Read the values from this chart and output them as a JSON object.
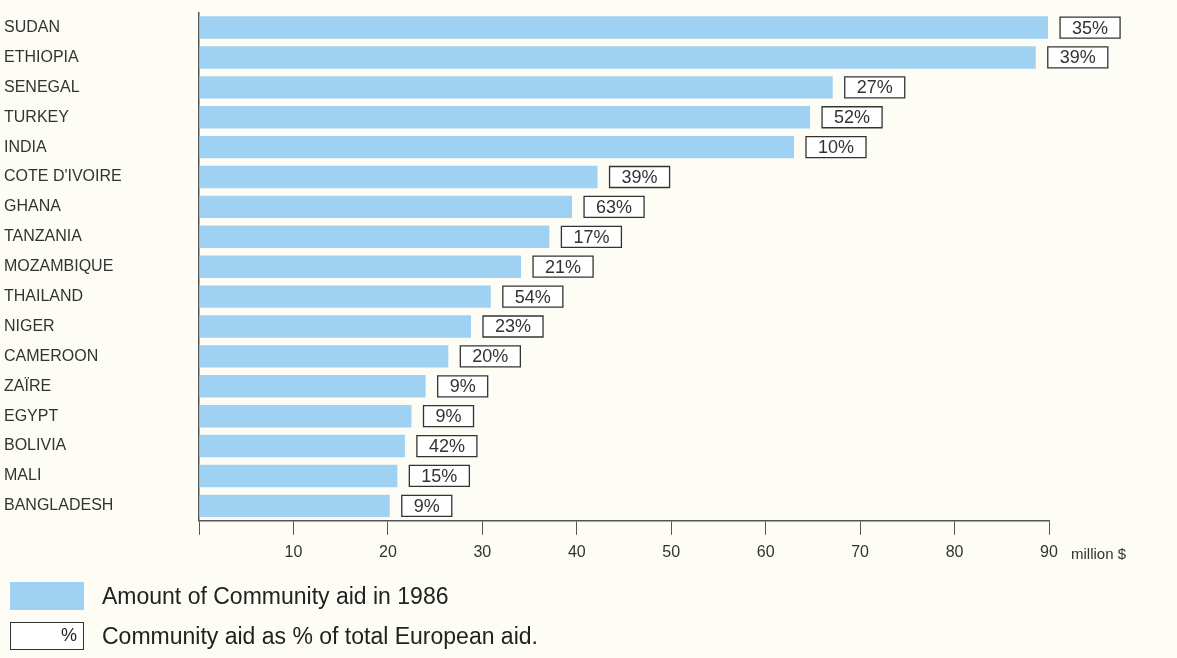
{
  "chart_data": {
    "type": "bar",
    "orientation": "horizontal",
    "categories": [
      "SUDAN",
      "ETHIOPIA",
      "SENEGAL",
      "TURKEY",
      "INDIA",
      "COTE D'IVOIRE",
      "GHANA",
      "TANZANIA",
      "MOZAMBIQUE",
      "THAILAND",
      "NIGER",
      "CAMEROON",
      "ZAÏRE",
      "EGYPT",
      "BOLIVIA",
      "MALI",
      "BANGLADESH"
    ],
    "series": [
      {
        "name": "Amount of Community aid in 1986",
        "color": "#9fd2f2",
        "values": [
          89.9,
          88.6,
          67.1,
          64.7,
          63.0,
          42.2,
          39.5,
          37.1,
          34.1,
          30.9,
          28.8,
          26.4,
          24.0,
          22.5,
          21.8,
          21.0,
          20.2
        ]
      }
    ],
    "xlabel": "million $",
    "xlim": [
      0,
      90
    ],
    "xticks": [
      {
        "value": 0,
        "label": null
      },
      10,
      20,
      30,
      40,
      50,
      60,
      70,
      80,
      90
    ],
    "grid": false,
    "legend": "bottom",
    "annotations": [
      {
        "text": "35%",
        "x": 89.9,
        "y": "SUDAN"
      },
      {
        "text": "39%",
        "x": 88.6,
        "y": "ETHIOPIA"
      },
      {
        "text": "27%",
        "x": 67.1,
        "y": "SENEGAL"
      },
      {
        "text": "52%",
        "x": 64.7,
        "y": "TURKEY"
      },
      {
        "text": "10%",
        "x": 63.0,
        "y": "INDIA"
      },
      {
        "text": "39%",
        "x": 42.2,
        "y": "COTE D'IVOIRE"
      },
      {
        "text": "63%",
        "x": 39.5,
        "y": "GHANA"
      },
      {
        "text": "17%",
        "x": 37.1,
        "y": "TANZANIA"
      },
      {
        "text": "21%",
        "x": 34.1,
        "y": "MOZAMBIQUE"
      },
      {
        "text": "54%",
        "x": 30.9,
        "y": "THAILAND"
      },
      {
        "text": "23%",
        "x": 28.8,
        "y": "NIGER"
      },
      {
        "text": "20%",
        "x": 26.4,
        "y": "CAMEROON"
      },
      {
        "text": "9%",
        "x": 24.0,
        "y": "ZAÏRE"
      },
      {
        "text": "9%",
        "x": 22.5,
        "y": "EGYPT"
      },
      {
        "text": "42%",
        "x": 21.8,
        "y": "BOLIVIA"
      },
      {
        "text": "15%",
        "x": 21.0,
        "y": "MALI"
      },
      {
        "text": "9%",
        "x": 20.2,
        "y": "BANGLADESH"
      },
      "%",
      "Community aid as % of total European aid."
    ]
  }
}
